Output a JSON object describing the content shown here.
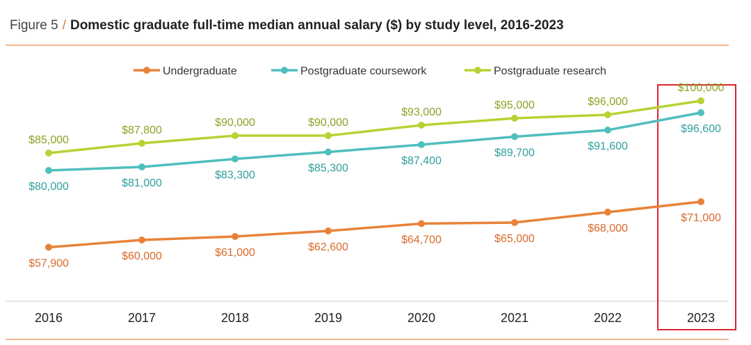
{
  "header": {
    "figure": "Figure 5",
    "separator": "/",
    "title": "Domestic graduate full-time median annual salary ($) by study level, 2016-2023"
  },
  "colors": {
    "undergraduate": "#e8823a",
    "postgraduate_coursework": "#4fbfbd",
    "postgraduate_research": "#b5d334",
    "highlight_box": "#d9262b",
    "rule": "#f0b48c"
  },
  "chart_data": {
    "type": "line",
    "title": "Domestic graduate full-time median annual salary ($) by study level, 2016-2023",
    "x": [
      "2016",
      "2017",
      "2018",
      "2019",
      "2020",
      "2021",
      "2022",
      "2023"
    ],
    "ylim": [
      40000,
      105000
    ],
    "legend_position": "top-center",
    "highlight": "2023",
    "series": [
      {
        "key": "undergraduate",
        "name": "Undergraduate",
        "values": [
          57900,
          60000,
          61000,
          62600,
          64700,
          65000,
          68000,
          71000
        ],
        "labels": [
          "$57,900",
          "$60,000",
          "$61,000",
          "$62,600",
          "$64,700",
          "$65,000",
          "$68,000",
          "$71,000"
        ],
        "label_position": "below"
      },
      {
        "key": "postgraduate_coursework",
        "name": "Postgraduate coursework",
        "values": [
          80000,
          81000,
          83300,
          85300,
          87400,
          89700,
          91600,
          96600
        ],
        "labels": [
          "$80,000",
          "$81,000",
          "$83,300",
          "$85,300",
          "$87,400",
          "$89,700",
          "$91,600",
          "$96,600"
        ],
        "label_position": "below"
      },
      {
        "key": "postgraduate_research",
        "name": "Postgraduate research",
        "values": [
          85000,
          87800,
          90000,
          90000,
          93000,
          95000,
          96000,
          100000
        ],
        "labels": [
          "$85,000",
          "$87,800",
          "$90,000",
          "$90,000",
          "$93,000",
          "$95,000",
          "$96,000",
          "$100,000"
        ],
        "label_position": "above"
      }
    ]
  }
}
